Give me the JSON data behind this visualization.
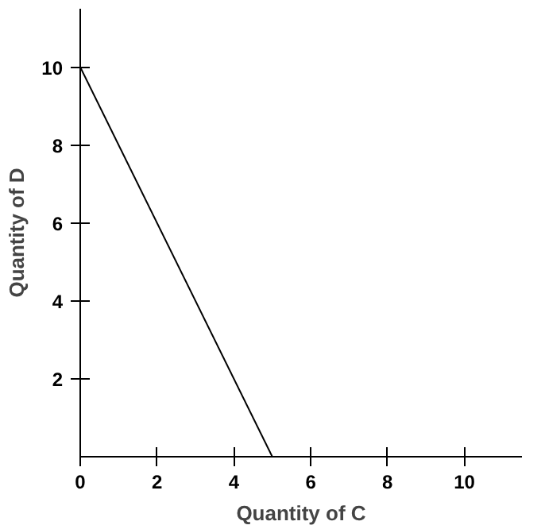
{
  "chart_data": {
    "type": "line",
    "xlabel": "Quantity of C",
    "ylabel": "Quantity of D",
    "x": [
      0,
      5
    ],
    "values": [
      10,
      0
    ],
    "color": "#000000",
    "xlim": [
      0,
      11.5
    ],
    "ylim": [
      0,
      11.5
    ],
    "xticks": [
      0,
      2,
      4,
      6,
      8,
      10
    ],
    "yticks": [
      2,
      4,
      6,
      8,
      10
    ],
    "grid": false
  }
}
